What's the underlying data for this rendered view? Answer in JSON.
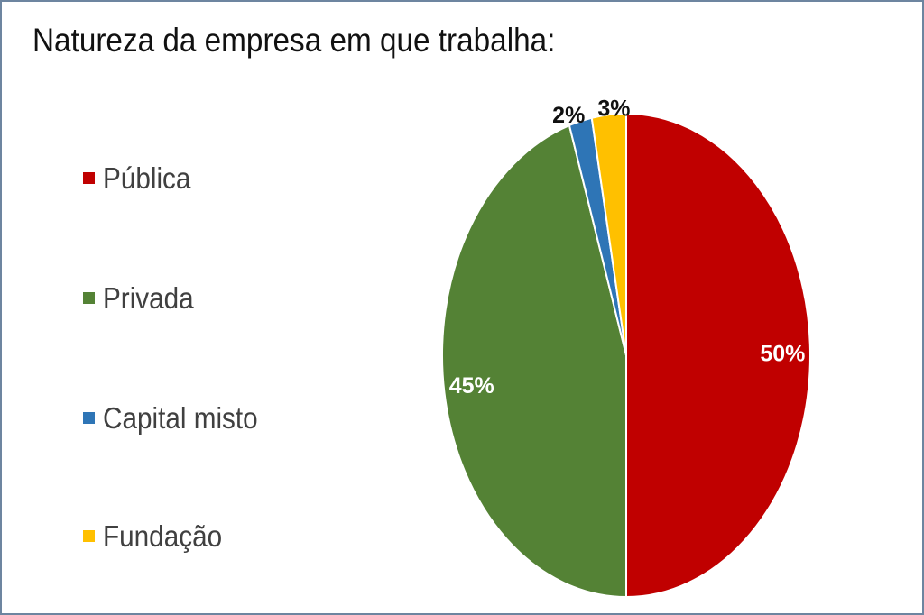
{
  "chart_data": {
    "type": "pie",
    "title": "Natureza da empresa em que trabalha:",
    "legend_position": "left",
    "slices": [
      {
        "label": "Pública",
        "value": 50,
        "value_label": "50%",
        "color": "#c00000",
        "label_color": "#ffffff"
      },
      {
        "label": "Privada",
        "value": 45,
        "value_label": "45%",
        "color": "#548235",
        "label_color": "#ffffff"
      },
      {
        "label": "Capital misto",
        "value": 2,
        "value_label": "2%",
        "color": "#2e75b6",
        "label_color": "#111111"
      },
      {
        "label": "Fundação",
        "value": 3,
        "value_label": "3%",
        "color": "#ffc000",
        "label_color": "#111111"
      }
    ]
  }
}
